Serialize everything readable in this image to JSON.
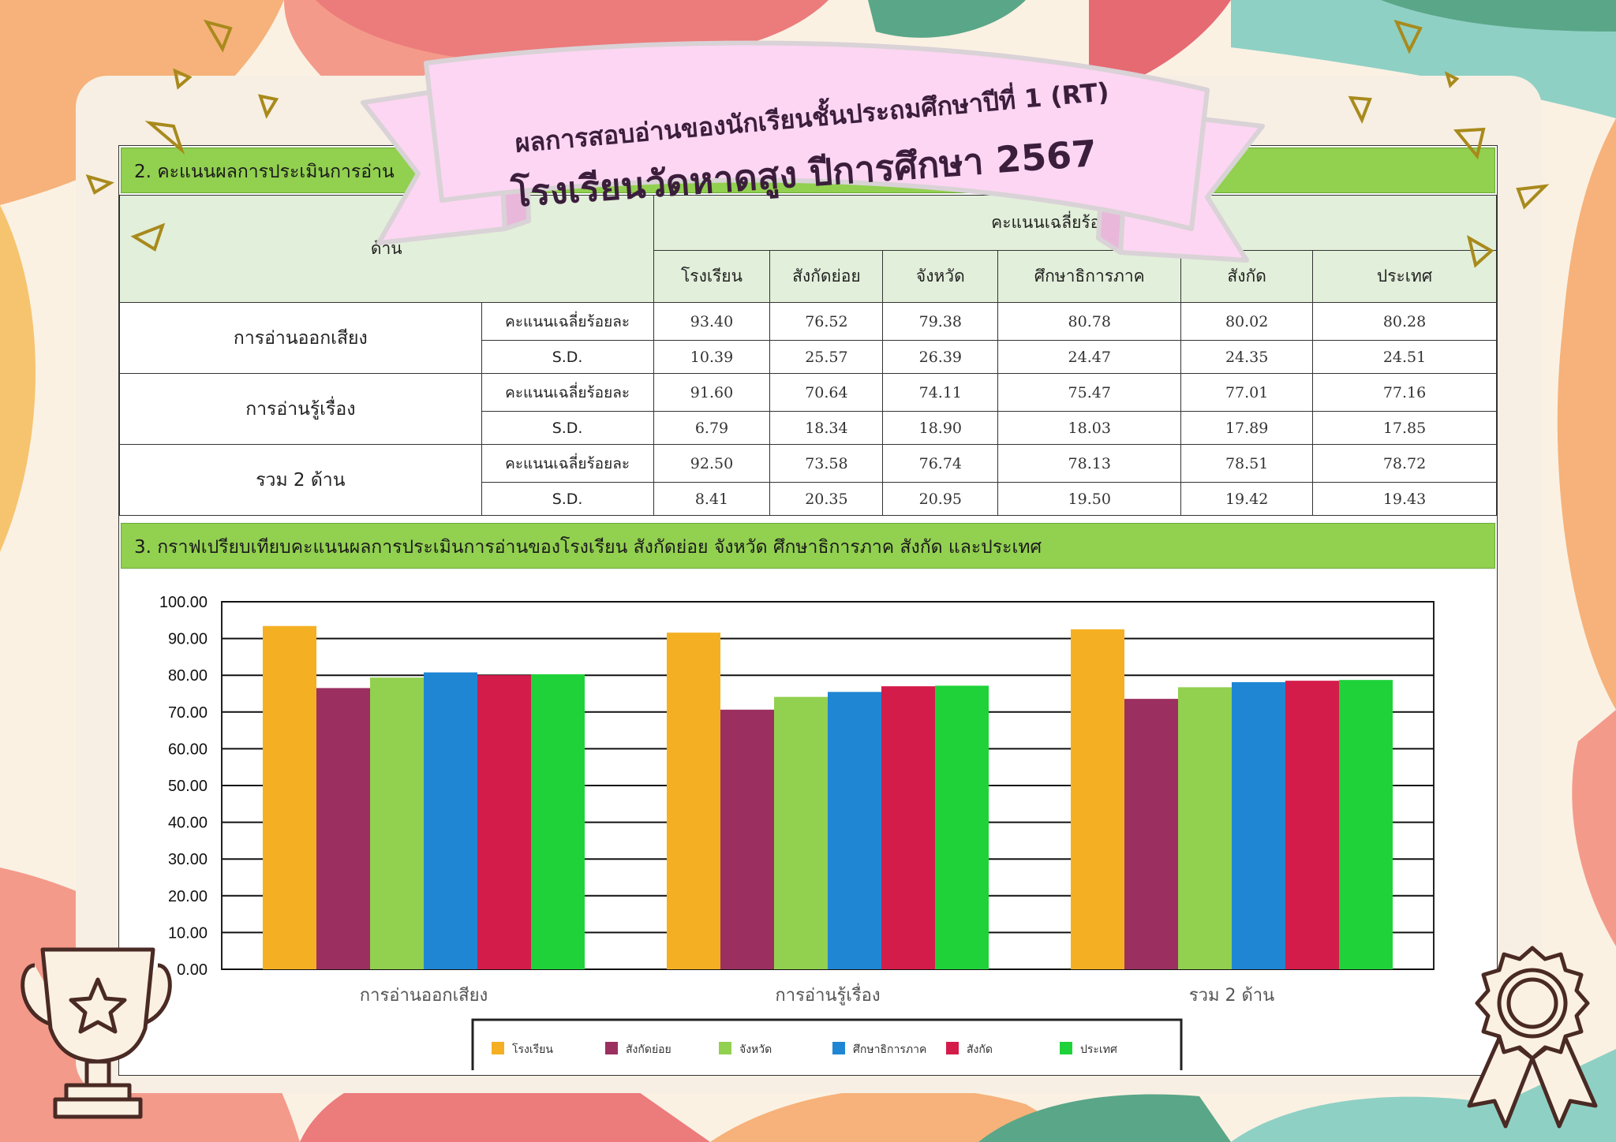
{
  "banner": {
    "line1": "ผลการสอบอ่านของนักเรียนชั้นประถมศึกษาปีที่ 1 (RT)",
    "line2": "โรงเรียนวัดหาดสูง  ปีการศึกษา 2567"
  },
  "colors": {
    "section_bar": "#92d050",
    "header_fill": "#e2efda",
    "ribbon": "#fcd6f2"
  },
  "section2": {
    "title": "2. คะแนนผลการประเมินการอ่าน"
  },
  "table": {
    "aspect_header": "ด้าน",
    "group_header": "คะแนนเฉลี่ยร้อยละจำแ",
    "columns": [
      "โรงเรียน",
      "สังกัดย่อย",
      "จังหวัด",
      "ศึกษาธิการภาค",
      "สังกัด",
      "ประเทศ"
    ],
    "rows": [
      {
        "aspect": "การอ่านออกเสียง",
        "mean_label": "คะแนนเฉลี่ยร้อยละ",
        "mean": [
          "93.40",
          "76.52",
          "79.38",
          "80.78",
          "80.02",
          "80.28"
        ],
        "sd_label": "S.D.",
        "sd": [
          "10.39",
          "25.57",
          "26.39",
          "24.47",
          "24.35",
          "24.51"
        ]
      },
      {
        "aspect": "การอ่านรู้เรื่อง",
        "mean_label": "คะแนนเฉลี่ยร้อยละ",
        "mean": [
          "91.60",
          "70.64",
          "74.11",
          "75.47",
          "77.01",
          "77.16"
        ],
        "sd_label": "S.D.",
        "sd": [
          "6.79",
          "18.34",
          "18.90",
          "18.03",
          "17.89",
          "17.85"
        ]
      },
      {
        "aspect": "รวม 2 ด้าน",
        "mean_label": "คะแนนเฉลี่ยร้อยละ",
        "mean": [
          "92.50",
          "73.58",
          "76.74",
          "78.13",
          "78.51",
          "78.72"
        ],
        "sd_label": "S.D.",
        "sd": [
          "8.41",
          "20.35",
          "20.95",
          "19.50",
          "19.42",
          "19.43"
        ]
      }
    ]
  },
  "section3": {
    "title": "3. กราฟเปรียบเทียบคะแนนผลการประเมินการอ่านของโรงเรียน สังกัดย่อย จังหวัด ศึกษาธิการภาค สังกัด และประเทศ"
  },
  "chart_data": {
    "type": "bar",
    "categories": [
      "การอ่านออกเสียง",
      "การอ่านรู้เรื่อง",
      "รวม 2 ด้าน"
    ],
    "series": [
      {
        "name": "โรงเรียน",
        "color": "#f4b022",
        "values": [
          93.4,
          91.6,
          92.5
        ]
      },
      {
        "name": "สังกัดย่อย",
        "color": "#9b2f60",
        "values": [
          76.52,
          70.64,
          73.58
        ]
      },
      {
        "name": "จังหวัด",
        "color": "#92d050",
        "values": [
          79.38,
          74.11,
          76.74
        ]
      },
      {
        "name": "ศึกษาธิการภาค",
        "color": "#1f86d4",
        "values": [
          80.78,
          75.47,
          78.13
        ]
      },
      {
        "name": "สังกัด",
        "color": "#d41c4a",
        "values": [
          80.02,
          77.01,
          78.51
        ]
      },
      {
        "name": "ประเทศ",
        "color": "#1fd23a",
        "values": [
          80.28,
          77.16,
          78.72
        ]
      }
    ],
    "ylim": [
      0,
      100
    ],
    "yticks": [
      "0.00",
      "10.00",
      "20.00",
      "30.00",
      "40.00",
      "50.00",
      "60.00",
      "70.00",
      "80.00",
      "90.00",
      "100.00"
    ],
    "grid": true,
    "legend": "bottom"
  }
}
